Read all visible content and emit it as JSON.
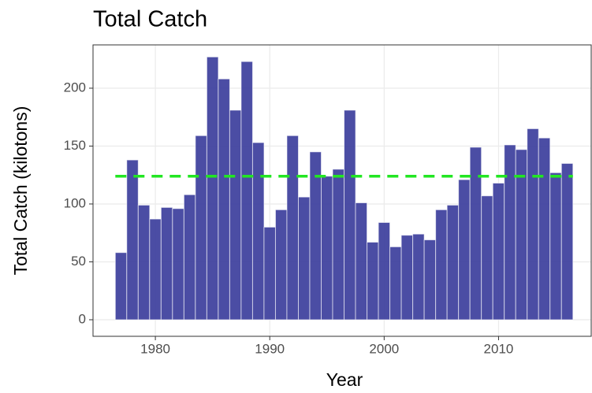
{
  "chart_data": {
    "type": "bar",
    "title": "Total Catch",
    "x_label": "Year",
    "y_label": "Total Catch (kilotons)",
    "x": [
      1977,
      1978,
      1979,
      1980,
      1981,
      1982,
      1983,
      1984,
      1985,
      1986,
      1987,
      1988,
      1989,
      1990,
      1991,
      1992,
      1993,
      1994,
      1995,
      1996,
      1997,
      1998,
      1999,
      2000,
      2001,
      2002,
      2003,
      2004,
      2005,
      2006,
      2007,
      2008,
      2009,
      2010,
      2011,
      2012,
      2013,
      2014,
      2015,
      2016
    ],
    "values": [
      58,
      138,
      99,
      87,
      97,
      96,
      108,
      159,
      227,
      208,
      181,
      223,
      153,
      80,
      95,
      159,
      106,
      145,
      124,
      130,
      181,
      101,
      67,
      84,
      63,
      73,
      74,
      69,
      95,
      99,
      121,
      149,
      107,
      118,
      151,
      147,
      165,
      157,
      127,
      135
    ],
    "color": "#3c3e9c",
    "mean_line": 124,
    "mean_line_color": "#22e622",
    "xlim": [
      1974.55,
      2018.1
    ],
    "xticks": [
      1980,
      1990,
      2000,
      2010
    ],
    "ylim": [
      -14.3,
      237.4
    ],
    "yticks": [
      0,
      50,
      100,
      150,
      200
    ],
    "grid": true
  }
}
